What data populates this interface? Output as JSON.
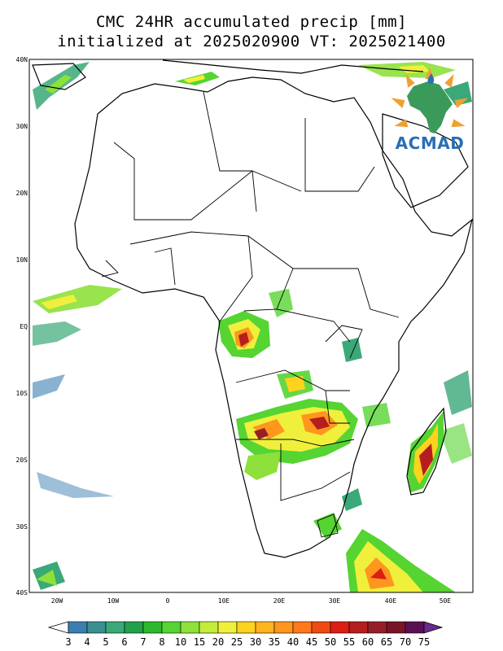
{
  "title": {
    "line1": "CMC 24HR accumulated precip [mm]",
    "line2": "initialized at 2025020900 VT: 2025021400"
  },
  "lat_labels": [
    "40N",
    "30N",
    "20N",
    "10N",
    "EQ",
    "10S",
    "20S",
    "30S",
    "40S"
  ],
  "lon_labels": [
    "20W",
    "10W",
    "0",
    "10E",
    "20E",
    "30E",
    "40E",
    "50E"
  ],
  "logo": {
    "text": "ACMAD",
    "icon": "africa-map-icon"
  },
  "colorbar": {
    "labels": [
      "3",
      "4",
      "5",
      "6",
      "7",
      "8",
      "10",
      "15",
      "20",
      "25",
      "30",
      "35",
      "40",
      "45",
      "50",
      "55",
      "60",
      "65",
      "70",
      "75"
    ],
    "colors": [
      "#ffffff",
      "#3b7fb0",
      "#3a9090",
      "#3aa878",
      "#23a04a",
      "#2eb82e",
      "#55d432",
      "#8ee03a",
      "#c4ec3c",
      "#f0f03c",
      "#ffd21e",
      "#ffb41e",
      "#ff961e",
      "#ff781e",
      "#f04a14",
      "#dc1e14",
      "#b41e1e",
      "#961e28",
      "#781428",
      "#5a1050",
      "#6a2a90"
    ]
  },
  "map_data": {
    "projection": "cylindrical equidistant",
    "lon_range": [
      -25,
      55
    ],
    "lat_range": [
      -40,
      40
    ],
    "variable": "24h accumulated precipitation",
    "units": "mm",
    "heavy_precip_regions": [
      "Gabon / Congo coast",
      "Zambia",
      "Angola",
      "Mozambique",
      "Madagascar",
      "Southwest Indian Ocean"
    ]
  }
}
